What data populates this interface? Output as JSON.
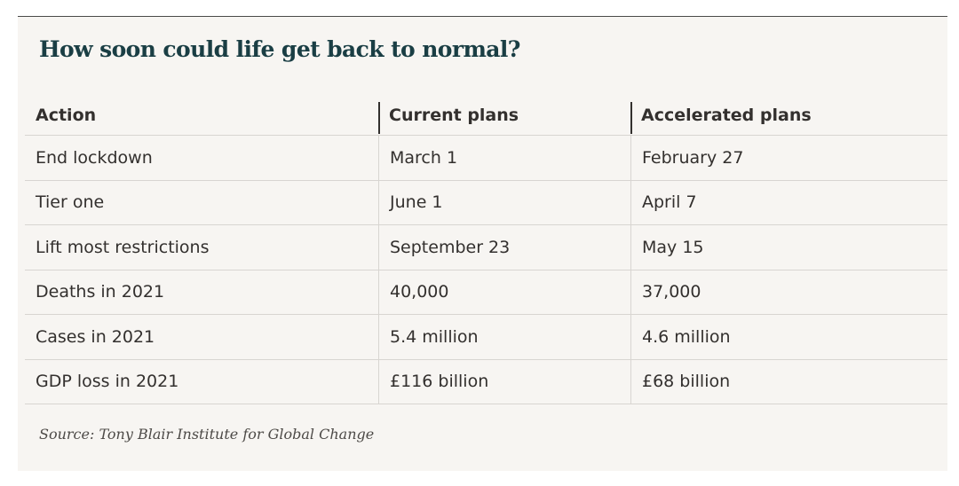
{
  "title": "How soon could life get back to normal?",
  "source": "Source: Tony Blair Institute for Global Change",
  "chart_data": {
    "type": "table",
    "title": "How soon could life get back to normal?",
    "columns": [
      "Action",
      "Current plans",
      "Accelerated plans"
    ],
    "rows": [
      [
        "End lockdown",
        "March 1",
        "February 27"
      ],
      [
        "Tier one",
        "June 1",
        "April 7"
      ],
      [
        "Lift most restrictions",
        "September 23",
        "May 15"
      ],
      [
        "Deaths in 2021",
        "40,000",
        "37,000"
      ],
      [
        "Cases in 2021",
        "5.4 million",
        "4.6 million"
      ],
      [
        "GDP loss in 2021",
        "£116 billion",
        "£68 billion"
      ]
    ],
    "source": "Source: Tony Blair Institute for Global Change"
  },
  "colors": {
    "background": "#f7f5f2",
    "title": "#1a3e44",
    "text": "#33302e",
    "rule": "#d8d5d1"
  }
}
